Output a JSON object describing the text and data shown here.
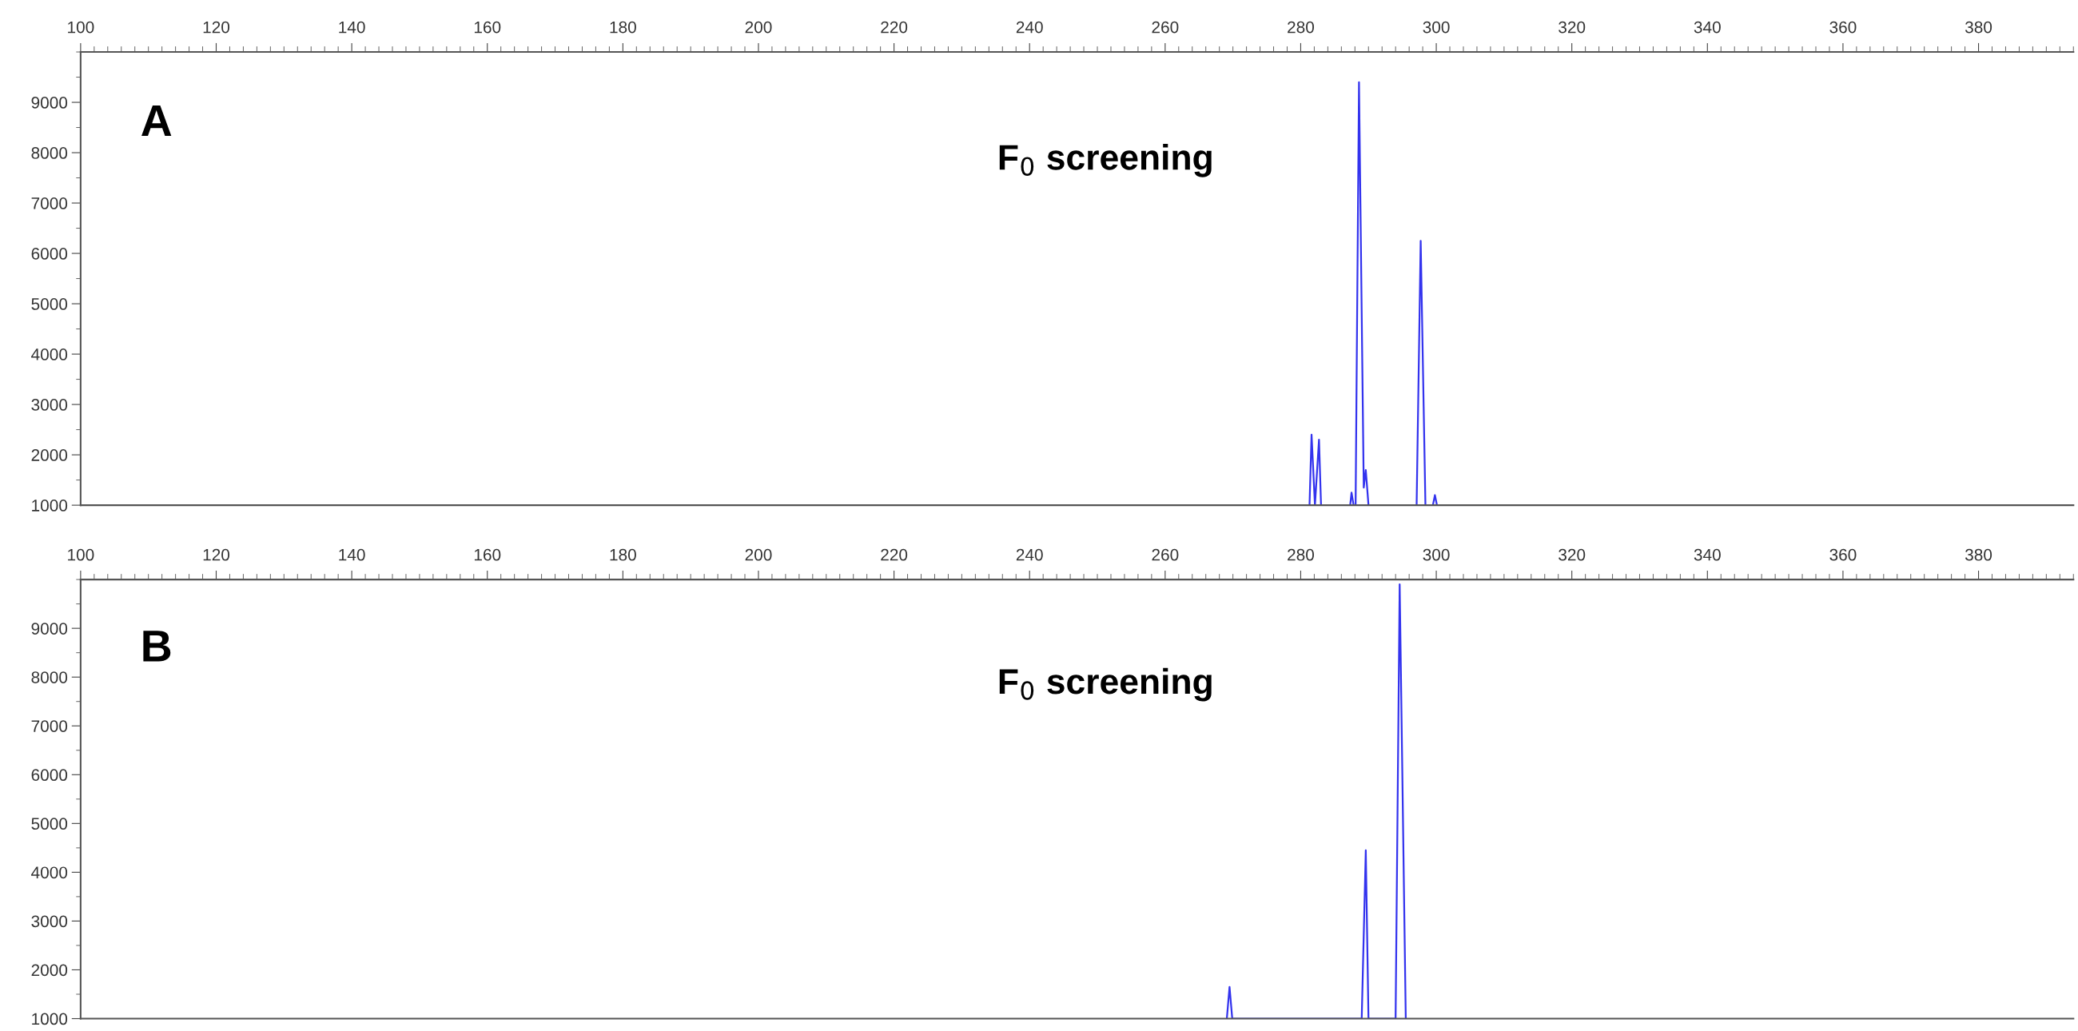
{
  "chart_data": [
    {
      "type": "line",
      "annotations": [
        "A",
        "F$_{0}$ screening"
      ],
      "xlim": [
        100,
        394
      ],
      "ylim": [
        1000,
        10000
      ],
      "xticks": [
        100,
        120,
        140,
        160,
        180,
        200,
        220,
        240,
        260,
        280,
        300,
        320,
        340,
        360,
        380
      ],
      "yticks": [
        1000,
        2000,
        3000,
        4000,
        5000,
        6000,
        7000,
        8000,
        9000
      ],
      "series": [
        {
          "color": "#3333ee",
          "x": [
            281.3,
            281.6,
            282.1,
            282.7,
            283.0,
            287.3,
            287.5,
            287.8,
            288.1,
            288.6,
            289.3,
            289.6,
            290.0,
            297.1,
            297.7,
            298.4,
            299.5,
            299.8,
            300.1
          ],
          "values": [
            1000,
            2400,
            1000,
            2300,
            1000,
            1000,
            1250,
            1000,
            1000,
            9400,
            1350,
            1700,
            1000,
            1000,
            6250,
            1000,
            1000,
            1200,
            1000
          ]
        }
      ]
    },
    {
      "type": "line",
      "annotations": [
        "B",
        "F$_{0}$ screening"
      ],
      "xlim": [
        100,
        394
      ],
      "ylim": [
        1000,
        10000
      ],
      "xticks": [
        100,
        120,
        140,
        160,
        180,
        200,
        220,
        240,
        260,
        280,
        300,
        320,
        340,
        360,
        380
      ],
      "yticks": [
        1000,
        2000,
        3000,
        4000,
        5000,
        6000,
        7000,
        8000,
        9000
      ],
      "series": [
        {
          "color": "#3333ee",
          "x": [
            269.1,
            269.5,
            269.9,
            289.0,
            289.6,
            290.0,
            294.0,
            294.6,
            295.5
          ],
          "values": [
            1000,
            1650,
            1000,
            1000,
            4450,
            1000,
            1000,
            9900,
            1000
          ]
        }
      ]
    }
  ]
}
